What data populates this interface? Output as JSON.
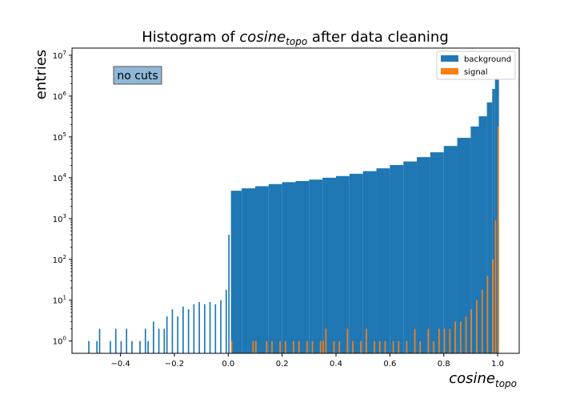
{
  "chart_data": {
    "type": "bar",
    "title_prefix": "Histogram of ",
    "title_var_main": "cosine",
    "title_var_sub": "topo",
    "title_suffix": " after data cleaning",
    "xlabel_main": "cosine",
    "xlabel_sub": "topo",
    "ylabel": "entries",
    "yscale": "log",
    "xlim": [
      -0.58,
      1.08
    ],
    "ylim": [
      0.5,
      15000000
    ],
    "grid": false,
    "legend_position": "top-right",
    "annotation": "no cuts",
    "xticks": [
      {
        "value": -0.4,
        "label": "−0.4"
      },
      {
        "value": -0.2,
        "label": "−0.2"
      },
      {
        "value": 0.0,
        "label": "0.0"
      },
      {
        "value": 0.2,
        "label": "0.2"
      },
      {
        "value": 0.4,
        "label": "0.4"
      },
      {
        "value": 0.6,
        "label": "0.6"
      },
      {
        "value": 0.8,
        "label": "0.8"
      },
      {
        "value": 1.0,
        "label": "1.0"
      }
    ],
    "yticks": [
      {
        "value": 1,
        "base": "10",
        "exp": "0"
      },
      {
        "value": 10,
        "base": "10",
        "exp": "1"
      },
      {
        "value": 100,
        "base": "10",
        "exp": "2"
      },
      {
        "value": 1000,
        "base": "10",
        "exp": "3"
      },
      {
        "value": 10000,
        "base": "10",
        "exp": "4"
      },
      {
        "value": 100000,
        "base": "10",
        "exp": "5"
      },
      {
        "value": 1000000,
        "base": "10",
        "exp": "6"
      },
      {
        "value": 10000000,
        "base": "10",
        "exp": "7"
      }
    ],
    "series": [
      {
        "name": "background",
        "color": "#1f77b4",
        "points": [
          [
            -0.52,
            1
          ],
          [
            -0.49,
            1
          ],
          [
            -0.48,
            2
          ],
          [
            -0.44,
            1
          ],
          [
            -0.42,
            2
          ],
          [
            -0.4,
            1
          ],
          [
            -0.38,
            2
          ],
          [
            -0.36,
            1
          ],
          [
            -0.33,
            1
          ],
          [
            -0.31,
            2
          ],
          [
            -0.3,
            1
          ],
          [
            -0.28,
            3
          ],
          [
            -0.26,
            2
          ],
          [
            -0.24,
            2
          ],
          [
            -0.23,
            4
          ],
          [
            -0.21,
            6
          ],
          [
            -0.19,
            4
          ],
          [
            -0.17,
            7
          ],
          [
            -0.15,
            6
          ],
          [
            -0.13,
            8
          ],
          [
            -0.11,
            9
          ],
          [
            -0.09,
            8
          ],
          [
            -0.07,
            9
          ],
          [
            -0.05,
            8
          ],
          [
            -0.03,
            10
          ],
          [
            -0.01,
            18
          ],
          [
            0.0,
            400
          ],
          [
            0.01,
            4800
          ],
          [
            0.05,
            5500
          ],
          [
            0.1,
            6200
          ],
          [
            0.15,
            7000
          ],
          [
            0.2,
            7800
          ],
          [
            0.25,
            8300
          ],
          [
            0.3,
            9000
          ],
          [
            0.35,
            10000
          ],
          [
            0.4,
            11000
          ],
          [
            0.45,
            12500
          ],
          [
            0.5,
            14500
          ],
          [
            0.55,
            17000
          ],
          [
            0.6,
            20500
          ],
          [
            0.65,
            25000
          ],
          [
            0.7,
            32000
          ],
          [
            0.75,
            42000
          ],
          [
            0.8,
            60000
          ],
          [
            0.85,
            95000
          ],
          [
            0.9,
            180000
          ],
          [
            0.93,
            320000
          ],
          [
            0.96,
            700000
          ],
          [
            0.98,
            1500000
          ],
          [
            0.99,
            3000000
          ],
          [
            1.0,
            7000000
          ]
        ]
      },
      {
        "name": "signal",
        "color": "#ff7f0e",
        "points": [
          [
            0.01,
            1
          ],
          [
            0.09,
            1
          ],
          [
            0.1,
            1
          ],
          [
            0.14,
            1
          ],
          [
            0.16,
            1
          ],
          [
            0.19,
            1
          ],
          [
            0.21,
            1
          ],
          [
            0.24,
            1
          ],
          [
            0.26,
            1
          ],
          [
            0.29,
            1
          ],
          [
            0.31,
            1
          ],
          [
            0.34,
            1
          ],
          [
            0.35,
            1
          ],
          [
            0.36,
            2
          ],
          [
            0.39,
            1
          ],
          [
            0.41,
            1
          ],
          [
            0.44,
            2
          ],
          [
            0.46,
            1
          ],
          [
            0.49,
            1
          ],
          [
            0.51,
            2
          ],
          [
            0.54,
            1
          ],
          [
            0.56,
            1
          ],
          [
            0.58,
            1
          ],
          [
            0.61,
            1
          ],
          [
            0.63,
            1
          ],
          [
            0.66,
            1
          ],
          [
            0.69,
            2
          ],
          [
            0.71,
            1
          ],
          [
            0.74,
            2
          ],
          [
            0.76,
            1
          ],
          [
            0.78,
            2
          ],
          [
            0.8,
            2
          ],
          [
            0.82,
            2
          ],
          [
            0.84,
            3
          ],
          [
            0.86,
            3
          ],
          [
            0.88,
            4
          ],
          [
            0.9,
            6
          ],
          [
            0.92,
            10
          ],
          [
            0.94,
            18
          ],
          [
            0.96,
            40
          ],
          [
            0.98,
            100
          ],
          [
            0.99,
            900
          ],
          [
            1.0,
            180000
          ]
        ]
      }
    ]
  }
}
